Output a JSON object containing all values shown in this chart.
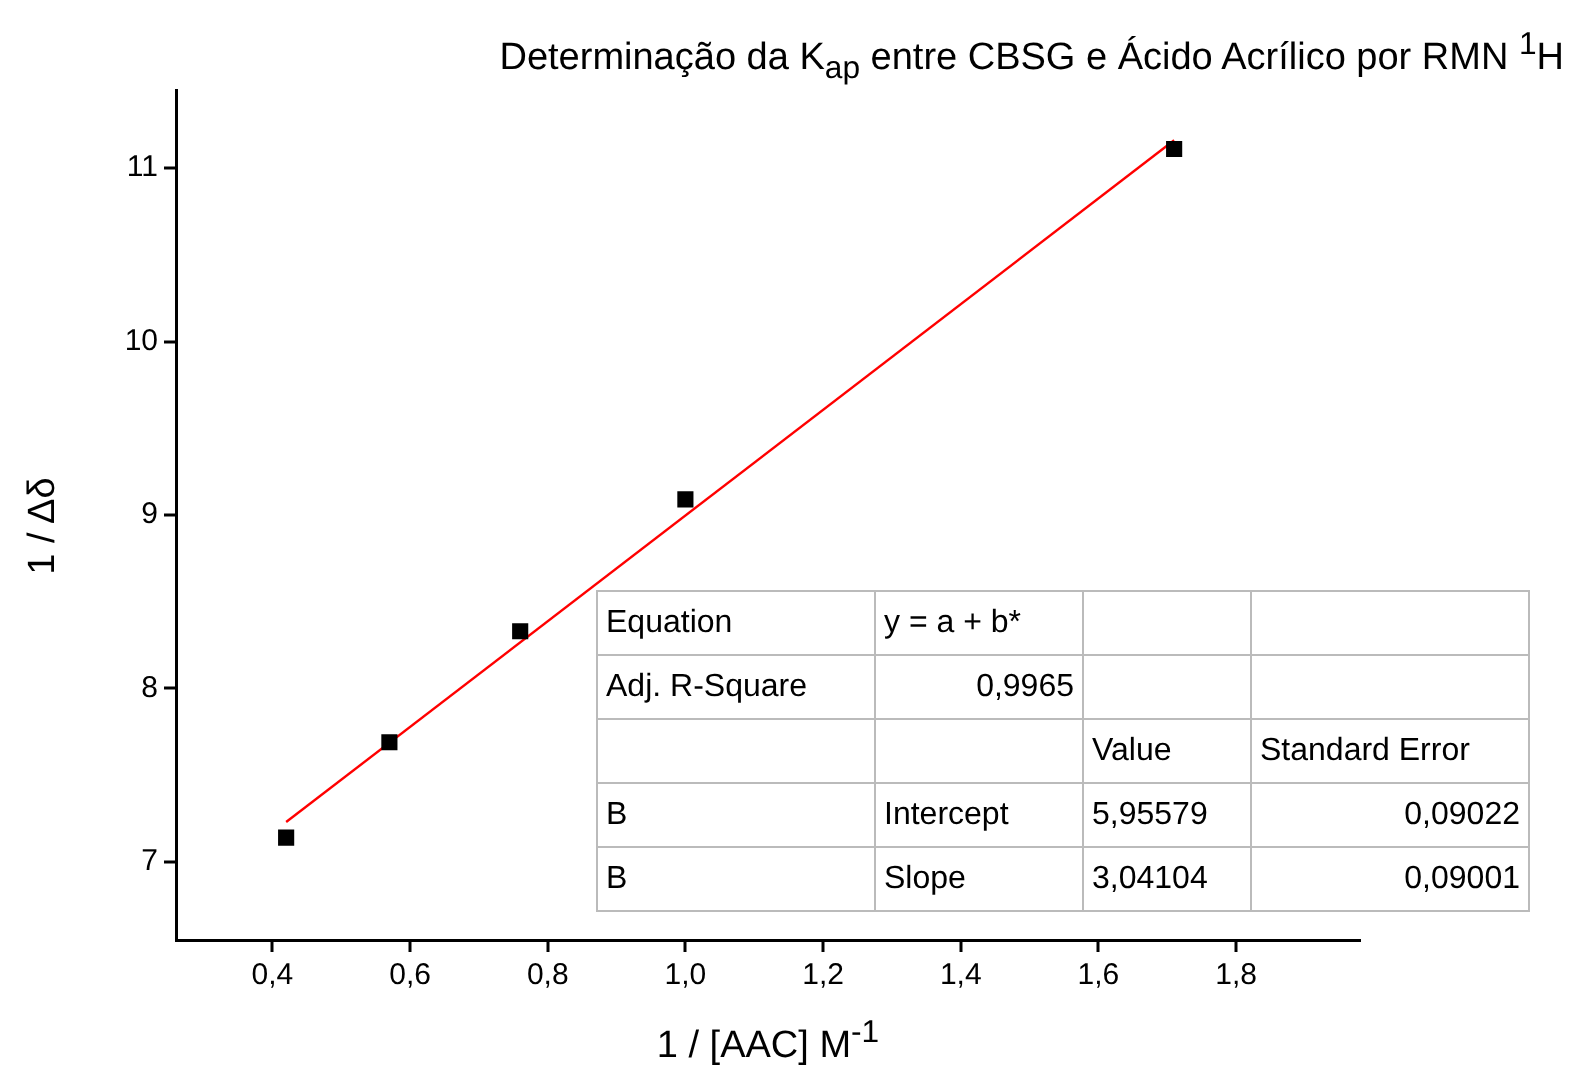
{
  "chart_data": {
    "type": "scatter",
    "title": "Determinação da K$_{ap}$ entre CBSG e Ácido Acrílico por RMN $^{1}$H",
    "xlabel": "1 / [AAC] M$^{-1}$",
    "ylabel": "1 / Δδ",
    "xlim": [
      0.26,
      1.98
    ],
    "xticks": [
      {
        "value": 0.4,
        "label": "0,4"
      },
      {
        "value": 0.6,
        "label": "0,6"
      },
      {
        "value": 0.8,
        "label": "0,8"
      },
      {
        "value": 1.0,
        "label": "1,0"
      },
      {
        "value": 1.2,
        "label": "1,2"
      },
      {
        "value": 1.4,
        "label": "1,4"
      },
      {
        "value": 1.6,
        "label": "1,6"
      },
      {
        "value": 1.8,
        "label": "1,8"
      }
    ],
    "ylim": [
      6.55,
      11.45
    ],
    "yticks": [
      7,
      8,
      9,
      10,
      11
    ],
    "grid": false,
    "legend": false,
    "series": [
      {
        "type": "scatter",
        "color": "#000000",
        "marker": "square",
        "x": [
          0.42,
          0.57,
          0.76,
          1.0,
          1.71
        ],
        "values": [
          7.14,
          7.69,
          8.33,
          9.09,
          11.11
        ]
      },
      {
        "type": "line",
        "color": "#ff0000",
        "marker": "none",
        "line_style": "solid",
        "x": [
          0.42,
          1.71
        ],
        "values": [
          7.23,
          11.16
        ]
      }
    ],
    "annotations": [
      "Equation",
      "y = a + b*",
      null,
      null,
      "Adj. R-Square",
      "0,9965",
      null,
      null,
      null,
      null,
      "Value",
      "Standard Error",
      "B",
      "Intercept",
      "5,95579",
      "0,09022",
      "B",
      "Slope",
      "3,04104",
      "0,09001"
    ]
  }
}
